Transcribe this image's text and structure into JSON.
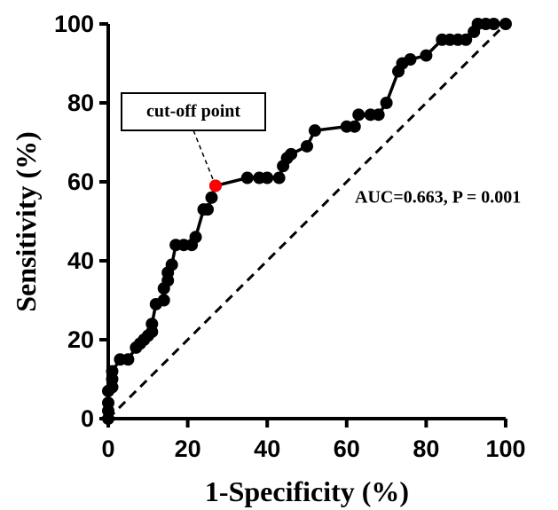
{
  "chart_data": {
    "type": "line",
    "x_label": "1-Specificity (%)",
    "y_label": "Sensitivity (%)",
    "x": [
      0,
      0,
      0,
      0,
      1,
      1,
      1,
      3,
      5,
      7,
      8,
      9,
      10,
      11,
      11,
      12,
      14,
      14,
      15,
      15,
      16,
      17,
      19,
      21,
      22,
      24,
      25,
      26,
      27,
      35,
      38,
      40,
      43,
      44,
      45,
      46,
      50,
      52,
      60,
      62,
      63,
      66,
      68,
      70,
      73,
      74,
      76,
      80,
      84,
      86,
      88,
      90,
      92,
      93,
      95,
      97,
      100
    ],
    "values": [
      0,
      2,
      4,
      7,
      8,
      10,
      12,
      15,
      15,
      18,
      19,
      20,
      21,
      22,
      24,
      29,
      30,
      33,
      35,
      37,
      39,
      44,
      44,
      44,
      46,
      53,
      53,
      56,
      59,
      61,
      61,
      61,
      61,
      64,
      66,
      67,
      69,
      73,
      74,
      74,
      77,
      77,
      77,
      80,
      88,
      90,
      91,
      92,
      96,
      96,
      96,
      96,
      98,
      100,
      100,
      100,
      100
    ],
    "color": "#000000",
    "highlight": {
      "x": 27,
      "y": 59,
      "label": "cut-off point",
      "color": "#ff0000"
    },
    "annotation": "AUC=0.663, P = 0.001",
    "xlim": [
      0,
      100
    ],
    "xticks": [
      0,
      20,
      40,
      60,
      80,
      100
    ],
    "ylim": [
      0,
      100
    ],
    "yticks": [
      0,
      20,
      40,
      60,
      80,
      100
    ]
  }
}
